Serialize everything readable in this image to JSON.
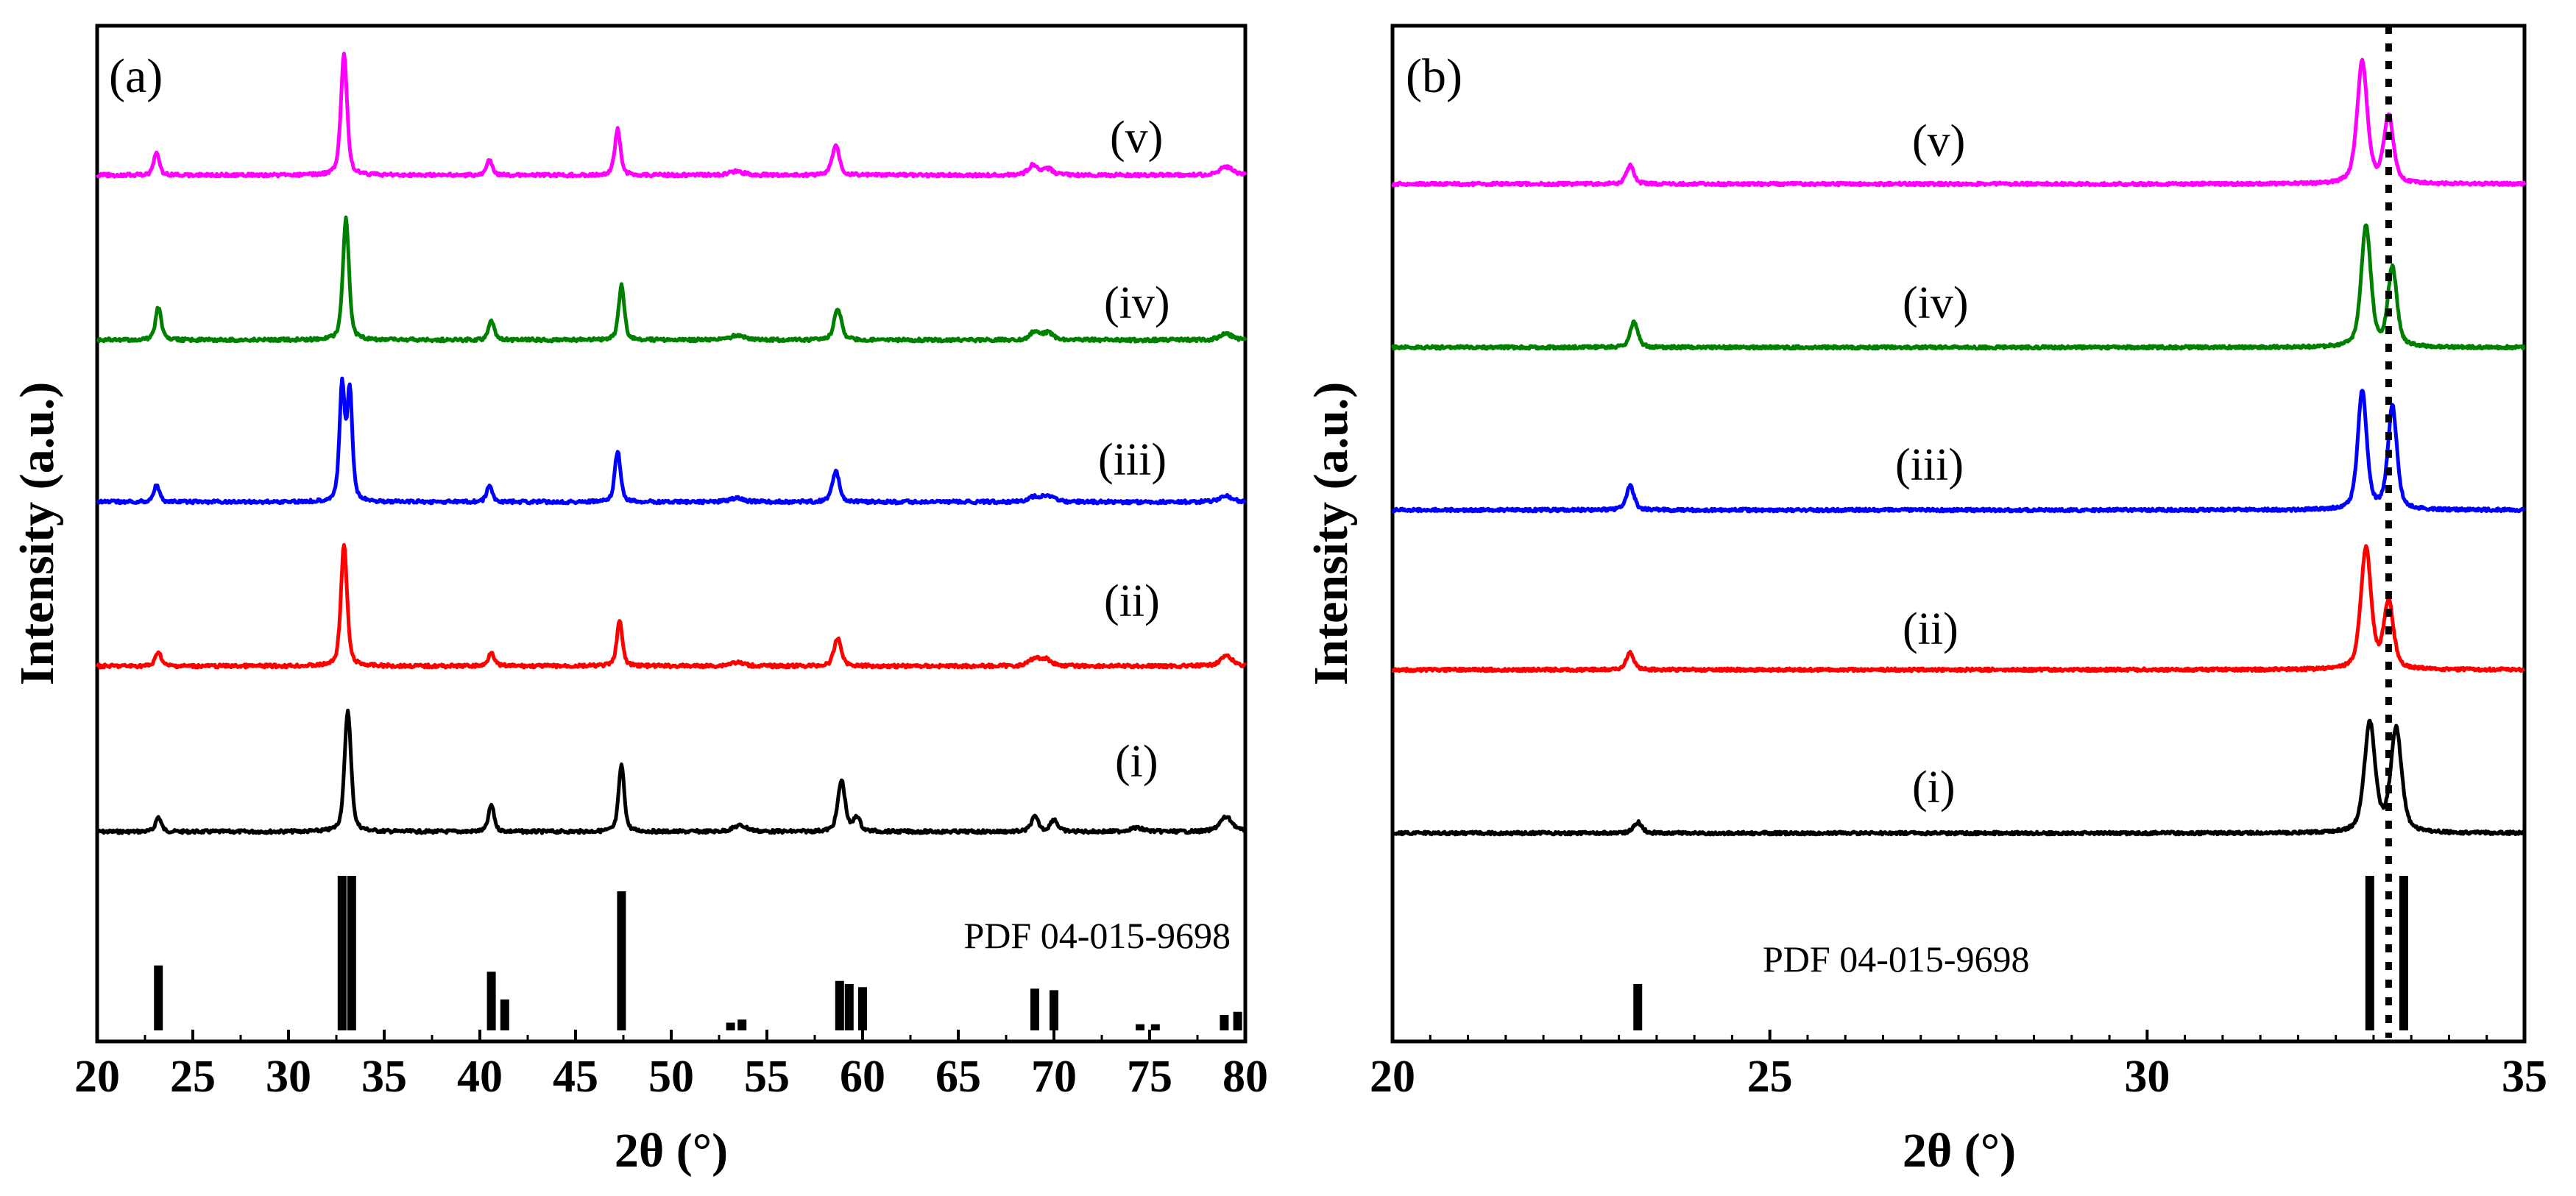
{
  "chart_data": [
    {
      "type": "line",
      "panel_label": "(a)",
      "xlabel": "2θ (°)",
      "ylabel": "Intensity (a.u.)",
      "xlim": [
        20,
        80
      ],
      "xticks": [
        "20",
        "25",
        "30",
        "35",
        "40",
        "45",
        "50",
        "55",
        "60",
        "65",
        "70",
        "75",
        "80"
      ],
      "reference": {
        "label": "PDF 04-015-9698",
        "peaks": [
          {
            "x": 23.2,
            "h": 0.42
          },
          {
            "x": 32.8,
            "h": 1.0
          },
          {
            "x": 33.3,
            "h": 1.0
          },
          {
            "x": 40.6,
            "h": 0.38
          },
          {
            "x": 41.3,
            "h": 0.2
          },
          {
            "x": 47.4,
            "h": 0.9
          },
          {
            "x": 53.1,
            "h": 0.05
          },
          {
            "x": 53.7,
            "h": 0.07
          },
          {
            "x": 58.8,
            "h": 0.32
          },
          {
            "x": 59.3,
            "h": 0.3
          },
          {
            "x": 60.0,
            "h": 0.28
          },
          {
            "x": 69.0,
            "h": 0.27
          },
          {
            "x": 70.0,
            "h": 0.26
          },
          {
            "x": 74.5,
            "h": 0.04
          },
          {
            "x": 75.3,
            "h": 0.04
          },
          {
            "x": 78.9,
            "h": 0.1
          },
          {
            "x": 79.6,
            "h": 0.12
          }
        ]
      },
      "series": [
        {
          "name": "(i)",
          "color": "#000000",
          "peaks": [
            [
              23.2,
              0.12,
              0.35
            ],
            [
              33.1,
              1.0,
              0.4
            ],
            [
              40.6,
              0.22,
              0.35
            ],
            [
              47.4,
              0.55,
              0.35
            ],
            [
              53.6,
              0.05,
              0.9
            ],
            [
              58.9,
              0.42,
              0.45
            ],
            [
              59.7,
              0.12,
              0.4
            ],
            [
              69.0,
              0.12,
              0.45
            ],
            [
              70.0,
              0.1,
              0.45
            ],
            [
              74.3,
              0.03,
              0.9
            ],
            [
              79.0,
              0.12,
              0.8
            ]
          ]
        },
        {
          "name": "(ii)",
          "color": "#ff0000",
          "peaks": [
            [
              23.2,
              0.12,
              0.35
            ],
            [
              32.9,
              1.0,
              0.38
            ],
            [
              40.6,
              0.12,
              0.35
            ],
            [
              47.3,
              0.37,
              0.35
            ],
            [
              53.4,
              0.03,
              0.9
            ],
            [
              58.7,
              0.23,
              0.45
            ],
            [
              69.0,
              0.06,
              0.7
            ],
            [
              69.6,
              0.05,
              0.7
            ],
            [
              79.0,
              0.08,
              0.8
            ]
          ]
        },
        {
          "name": "(iii)",
          "color": "#0000ff",
          "peaks": [
            [
              23.1,
              0.14,
              0.35
            ],
            [
              32.8,
              0.95,
              0.32
            ],
            [
              33.2,
              0.9,
              0.32
            ],
            [
              40.5,
              0.13,
              0.35
            ],
            [
              47.2,
              0.42,
              0.35
            ],
            [
              53.4,
              0.03,
              0.9
            ],
            [
              58.6,
              0.25,
              0.45
            ],
            [
              69.0,
              0.04,
              0.8
            ],
            [
              69.7,
              0.05,
              0.7
            ],
            [
              79.0,
              0.05,
              0.8
            ]
          ]
        },
        {
          "name": "(iv)",
          "color": "#008000",
          "peaks": [
            [
              23.2,
              0.27,
              0.35
            ],
            [
              33.0,
              1.0,
              0.38
            ],
            [
              40.6,
              0.16,
              0.35
            ],
            [
              47.4,
              0.45,
              0.35
            ],
            [
              53.5,
              0.04,
              0.9
            ],
            [
              58.7,
              0.26,
              0.45
            ],
            [
              69.0,
              0.07,
              0.6
            ],
            [
              69.7,
              0.06,
              0.6
            ],
            [
              79.0,
              0.05,
              0.8
            ]
          ]
        },
        {
          "name": "(v)",
          "color": "#ff00ff",
          "peaks": [
            [
              23.1,
              0.18,
              0.35
            ],
            [
              32.9,
              1.0,
              0.38
            ],
            [
              40.5,
              0.12,
              0.35
            ],
            [
              47.2,
              0.38,
              0.35
            ],
            [
              53.4,
              0.03,
              0.9
            ],
            [
              58.6,
              0.25,
              0.45
            ],
            [
              68.9,
              0.08,
              0.6
            ],
            [
              69.7,
              0.05,
              0.6
            ],
            [
              79.0,
              0.07,
              0.8
            ]
          ]
        }
      ]
    },
    {
      "type": "line",
      "panel_label": "(b)",
      "xlabel": "2θ (°)",
      "ylabel": "Intensity (a.u.)",
      "xlim": [
        20,
        35
      ],
      "xticks": [
        "20",
        "25",
        "30",
        "35"
      ],
      "dotted_line_x": 33.2,
      "reference": {
        "label": "PDF 04-015-9698",
        "peaks": [
          {
            "x": 23.25,
            "h": 0.3
          },
          {
            "x": 32.95,
            "h": 1.0
          },
          {
            "x": 33.4,
            "h": 1.0
          }
        ]
      },
      "series": [
        {
          "name": "(i)",
          "color": "#000000",
          "peaks": [
            [
              23.25,
              0.09,
              0.13
            ],
            [
              32.95,
              0.9,
              0.17
            ],
            [
              33.3,
              0.85,
              0.17
            ]
          ]
        },
        {
          "name": "(ii)",
          "color": "#ff0000",
          "peaks": [
            [
              23.15,
              0.14,
              0.12
            ],
            [
              32.9,
              1.0,
              0.16
            ],
            [
              33.2,
              0.55,
              0.15
            ]
          ]
        },
        {
          "name": "(iii)",
          "color": "#0000ff",
          "peaks": [
            [
              23.15,
              0.2,
              0.12
            ],
            [
              32.85,
              0.98,
              0.14
            ],
            [
              33.25,
              0.85,
              0.14
            ]
          ]
        },
        {
          "name": "(iv)",
          "color": "#008000",
          "peaks": [
            [
              23.2,
              0.21,
              0.12
            ],
            [
              32.9,
              1.0,
              0.15
            ],
            [
              33.25,
              0.65,
              0.14
            ]
          ]
        },
        {
          "name": "(v)",
          "color": "#ff00ff",
          "peaks": [
            [
              23.15,
              0.15,
              0.12
            ],
            [
              32.85,
              1.0,
              0.16
            ],
            [
              33.2,
              0.55,
              0.15
            ]
          ]
        }
      ]
    }
  ]
}
